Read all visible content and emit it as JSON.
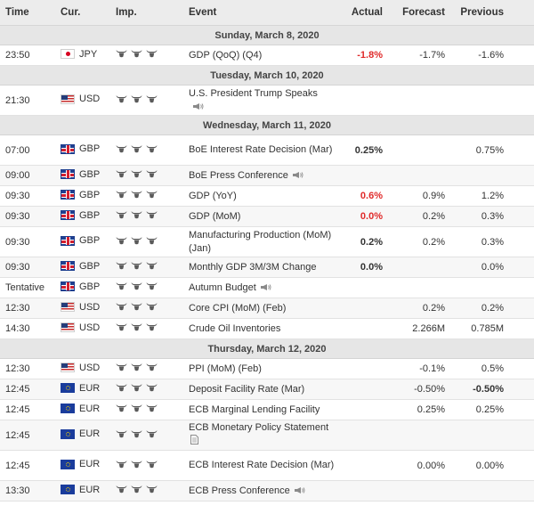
{
  "headers": {
    "time": "Time",
    "currency": "Cur.",
    "importance": "Imp.",
    "event": "Event",
    "actual": "Actual",
    "forecast": "Forecast",
    "previous": "Previous"
  },
  "rows": [
    {
      "kind": "day",
      "label": "Sunday, March 8, 2020"
    },
    {
      "kind": "event",
      "time": "23:50",
      "flag": "jp",
      "currency": "JPY",
      "event": "GDP (QoQ) (Q4)",
      "actual": "-1.8%",
      "actual_color": "red",
      "forecast": "-1.7%",
      "previous": "-1.6%",
      "lines": 1
    },
    {
      "kind": "day",
      "label": "Tuesday, March 10, 2020"
    },
    {
      "kind": "event",
      "time": "21:30",
      "flag": "us",
      "currency": "USD",
      "event": "U.S. President Trump Speaks",
      "icon": "speech-icon",
      "icon_newline": true,
      "actual": "",
      "forecast": "",
      "previous": "",
      "lines": 2
    },
    {
      "kind": "day",
      "label": "Wednesday, March 11, 2020"
    },
    {
      "kind": "event",
      "time": "07:00",
      "flag": "gb",
      "currency": "GBP",
      "event": "BoE Interest Rate Decision (Mar)",
      "actual": "0.25%",
      "actual_color": "black",
      "forecast": "",
      "previous": "0.75%",
      "lines": 2
    },
    {
      "kind": "event",
      "time": "09:00",
      "flag": "gb",
      "currency": "GBP",
      "event": "BoE Press Conference",
      "icon": "speech-icon",
      "actual": "",
      "forecast": "",
      "previous": "",
      "lines": 1
    },
    {
      "kind": "event",
      "time": "09:30",
      "flag": "gb",
      "currency": "GBP",
      "event": "GDP (YoY)",
      "actual": "0.6%",
      "actual_color": "red",
      "forecast": "0.9%",
      "previous": "1.2%",
      "lines": 1
    },
    {
      "kind": "event",
      "time": "09:30",
      "flag": "gb",
      "currency": "GBP",
      "event": "GDP (MoM)",
      "actual": "0.0%",
      "actual_color": "red",
      "forecast": "0.2%",
      "previous": "0.3%",
      "lines": 1
    },
    {
      "kind": "event",
      "time": "09:30",
      "flag": "gb",
      "currency": "GBP",
      "event": "Manufacturing Production (MoM) (Jan)",
      "actual": "0.2%",
      "actual_color": "black",
      "forecast": "0.2%",
      "previous": "0.3%",
      "lines": 2
    },
    {
      "kind": "event",
      "time": "09:30",
      "flag": "gb",
      "currency": "GBP",
      "event": "Monthly GDP 3M/3M Change",
      "actual": "0.0%",
      "actual_color": "black",
      "forecast": "",
      "previous": "0.0%",
      "lines": 1
    },
    {
      "kind": "event",
      "time": "Tentative",
      "flag": "gb",
      "currency": "GBP",
      "event": "Autumn Budget",
      "icon": "speech-icon",
      "actual": "",
      "forecast": "",
      "previous": "",
      "lines": 1
    },
    {
      "kind": "event",
      "time": "12:30",
      "flag": "us",
      "currency": "USD",
      "event": "Core CPI (MoM) (Feb)",
      "actual": "",
      "forecast": "0.2%",
      "previous": "0.2%",
      "lines": 1
    },
    {
      "kind": "event",
      "time": "14:30",
      "flag": "us",
      "currency": "USD",
      "event": "Crude Oil Inventories",
      "actual": "",
      "forecast": "2.266M",
      "previous": "0.785M",
      "lines": 1
    },
    {
      "kind": "day",
      "label": "Thursday, March 12, 2020"
    },
    {
      "kind": "event",
      "time": "12:30",
      "flag": "us",
      "currency": "USD",
      "event": "PPI (MoM) (Feb)",
      "actual": "",
      "forecast": "-0.1%",
      "previous": "0.5%",
      "lines": 1
    },
    {
      "kind": "event",
      "time": "12:45",
      "flag": "eu",
      "currency": "EUR",
      "event": "Deposit Facility Rate (Mar)",
      "actual": "",
      "forecast": "-0.50%",
      "previous": "-0.50%",
      "previous_bold": true,
      "lines": 1
    },
    {
      "kind": "event",
      "time": "12:45",
      "flag": "eu",
      "currency": "EUR",
      "event": "ECB Marginal Lending Facility",
      "actual": "",
      "forecast": "0.25%",
      "previous": "0.25%",
      "lines": 1
    },
    {
      "kind": "event",
      "time": "12:45",
      "flag": "eu",
      "currency": "EUR",
      "event": "ECB Monetary Policy Statement",
      "icon": "document-icon",
      "icon_newline": true,
      "actual": "",
      "forecast": "",
      "previous": "",
      "lines": 2
    },
    {
      "kind": "event",
      "time": "12:45",
      "flag": "eu",
      "currency": "EUR",
      "event": "ECB Interest Rate Decision (Mar)",
      "actual": "",
      "forecast": "0.00%",
      "previous": "0.00%",
      "lines": 2
    },
    {
      "kind": "event",
      "time": "13:30",
      "flag": "eu",
      "currency": "EUR",
      "event": "ECB Press Conference",
      "icon": "speech-icon",
      "actual": "",
      "forecast": "",
      "previous": "",
      "lines": 1
    }
  ],
  "importance_icon": "bull-icon",
  "importance_level": 3,
  "colors": {
    "negative": "#e02b2b",
    "header_bg": "#ececec",
    "day_bg": "#e6e6e6"
  }
}
